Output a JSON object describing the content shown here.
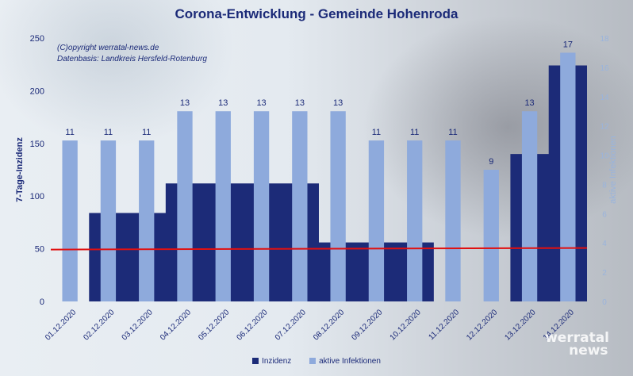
{
  "chart_data": {
    "type": "bar-area-combo",
    "title": "Corona-Entwicklung - Gemeinde Hohenroda",
    "notes": [
      "(C)opyright werratal-news.de",
      "Datenbasis: Landkreis Hersfeld-Rotenburg"
    ],
    "categories": [
      "01.12.2020",
      "02.12.2020",
      "03.12.2020",
      "04.12.2020",
      "05.12.2020",
      "06.12.2020",
      "07.12.2020",
      "08.12.2020",
      "09.12.2020",
      "10.12.2020",
      "11.12.2020",
      "12.12.2020",
      "13.12.2020",
      "14.12.2020"
    ],
    "series": [
      {
        "name": "Inzidenz",
        "type": "area",
        "axis": "left",
        "color": "#1c2b78",
        "values": [
          null,
          84,
          84,
          112,
          112,
          112,
          112,
          56,
          56,
          56,
          0,
          0,
          140,
          224
        ]
      },
      {
        "name": "aktive Infektionen",
        "type": "bar",
        "axis": "right",
        "color": "#8eaadc",
        "values": [
          11,
          11,
          11,
          13,
          13,
          13,
          13,
          13,
          11,
          11,
          11,
          9,
          13,
          17
        ]
      }
    ],
    "threshold": {
      "value": 50,
      "color": "#e01010"
    },
    "ylabel": "7-Tage-Inzidenz",
    "y2label": "aktive Infektionen",
    "ylim": [
      0,
      250
    ],
    "y2lim": [
      0,
      18
    ],
    "yticks": [
      0,
      50,
      100,
      150,
      200,
      250
    ],
    "y2ticks": [
      0,
      2,
      4,
      6,
      8,
      10,
      12,
      14,
      16,
      18
    ],
    "legend": "bottom",
    "grid": false
  },
  "brand": {
    "line1": "werratal",
    "line2": "news"
  }
}
